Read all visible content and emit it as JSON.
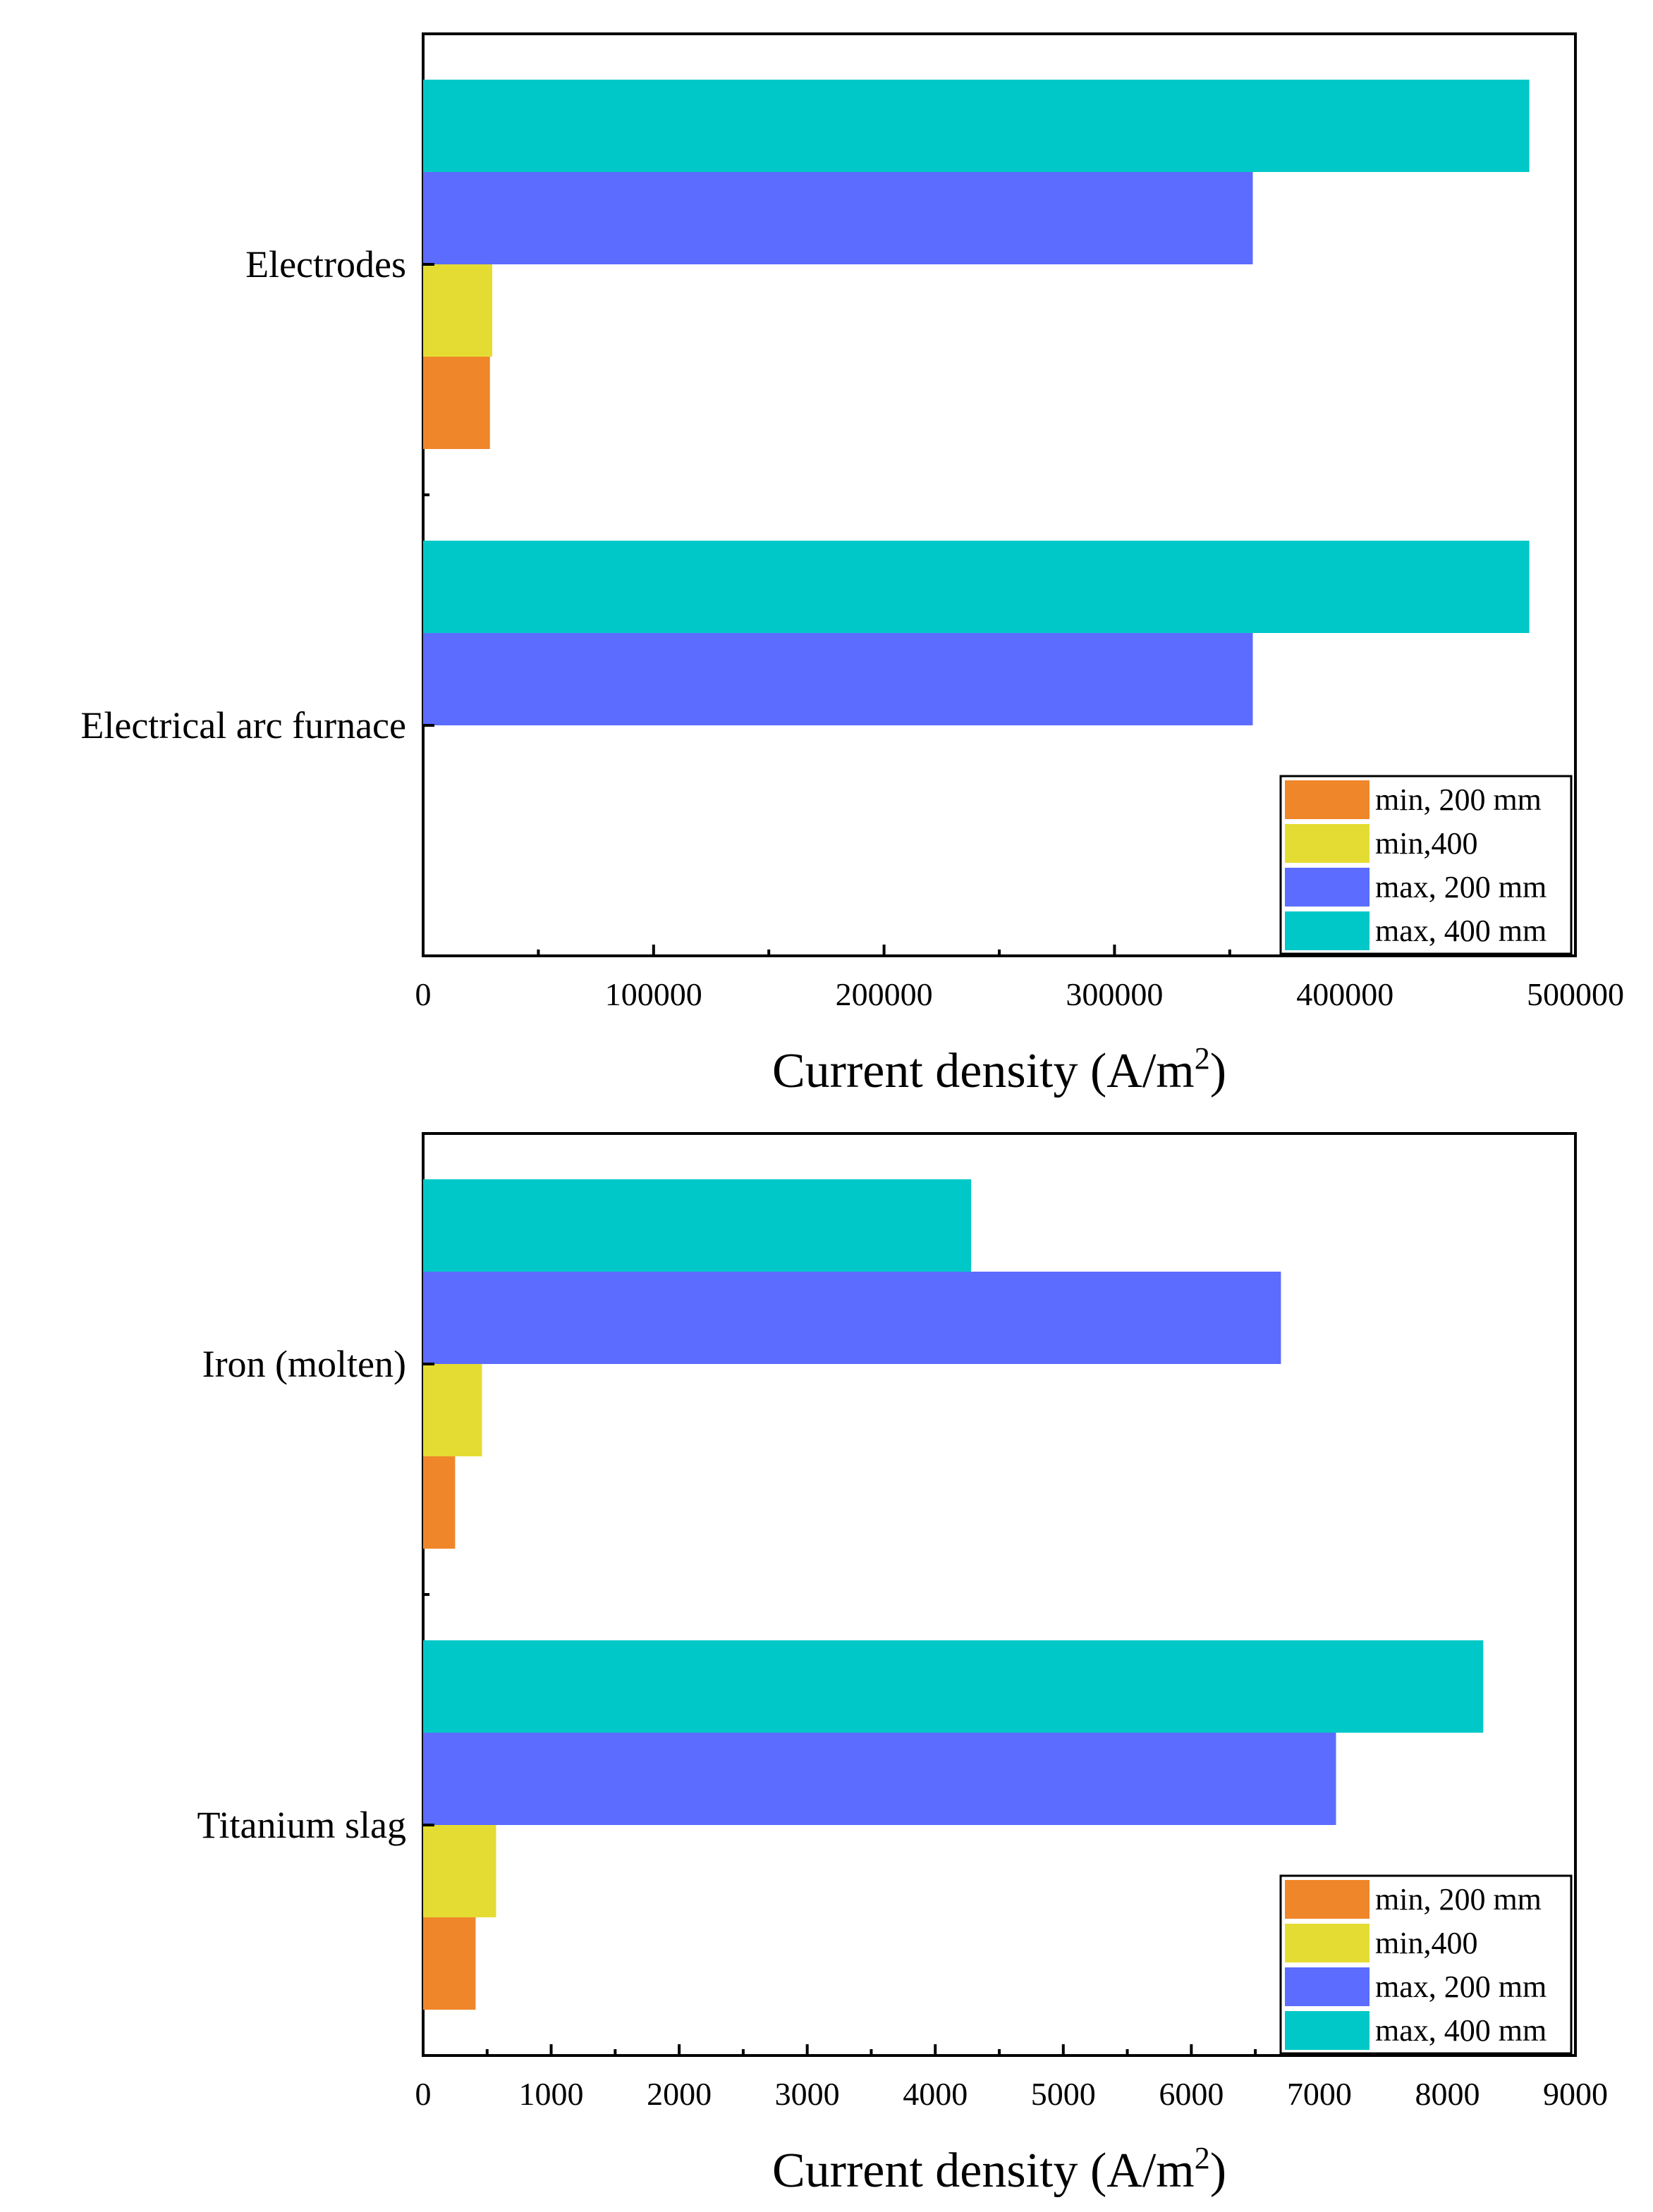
{
  "chart_data": [
    {
      "type": "bar",
      "orientation": "horizontal",
      "title": "",
      "ylabel": "",
      "xlabel": {
        "text": "Current density (A/m",
        "sup": "2",
        "close": ")"
      },
      "categories": [
        "Electrical arc furnace",
        "Electrodes"
      ],
      "xlim": [
        0,
        500000
      ],
      "xticks": [
        "0",
        "100000",
        "200000",
        "300000",
        "400000",
        "500000"
      ],
      "series": [
        {
          "name": "min, 200 mm",
          "color": "#f0862a",
          "values": [
            null,
            29000
          ]
        },
        {
          "name": "min,400",
          "color": "#e5dc33",
          "values": [
            null,
            30000
          ]
        },
        {
          "name": "max, 200 mm",
          "color": "#5b6cff",
          "values": [
            360000,
            360000
          ]
        },
        {
          "name": "max, 400 mm",
          "color": "#00c8c8",
          "values": [
            480000,
            480000
          ]
        }
      ],
      "legend": "bottom-right",
      "grid": false
    },
    {
      "type": "bar",
      "orientation": "horizontal",
      "title": "",
      "ylabel": "",
      "xlabel": {
        "text": "Current density (A/m",
        "sup": "2",
        "close": ")"
      },
      "categories": [
        "Titanium slag",
        "Iron (molten)"
      ],
      "xlim": [
        0,
        9000
      ],
      "xticks": [
        "0",
        "1000",
        "2000",
        "3000",
        "4000",
        "5000",
        "6000",
        "7000",
        "8000",
        "9000"
      ],
      "series": [
        {
          "name": "min, 200 mm",
          "color": "#f0862a",
          "values": [
            410,
            250
          ]
        },
        {
          "name": "min,400",
          "color": "#e5dc33",
          "values": [
            570,
            460
          ]
        },
        {
          "name": "max, 200 mm",
          "color": "#5b6cff",
          "values": [
            7130,
            6700
          ]
        },
        {
          "name": "max, 400 mm",
          "color": "#00c8c8",
          "values": [
            8280,
            4280
          ]
        }
      ],
      "legend": "bottom-right",
      "grid": false
    }
  ]
}
